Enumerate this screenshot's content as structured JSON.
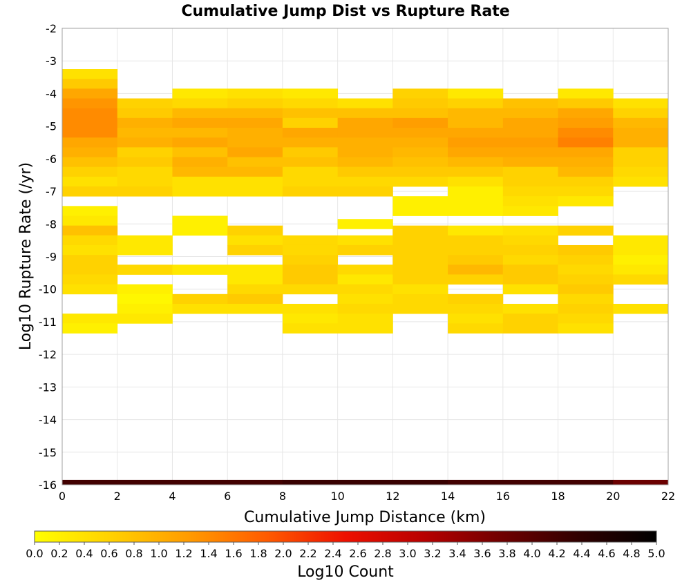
{
  "chart_data": {
    "type": "heatmap",
    "title": "Cumulative Jump Dist vs Rupture Rate",
    "xlabel": "Cumulative Jump Distance (km)",
    "ylabel": "Log10 Rupture Rate (/yr)",
    "xlim": [
      0,
      22
    ],
    "ylim": [
      -16,
      -2
    ],
    "x_ticks": [
      "0",
      "2",
      "4",
      "6",
      "8",
      "10",
      "12",
      "14",
      "16",
      "18",
      "20",
      "22"
    ],
    "y_ticks": [
      "-2",
      "-3",
      "-4",
      "-5",
      "-6",
      "-7",
      "-8",
      "-9",
      "-10",
      "-11",
      "-12",
      "-13",
      "-14",
      "-15",
      "-16"
    ],
    "grid": true,
    "x_bin_width": 2,
    "y_bin_height": 0.3,
    "colorbar": {
      "label": "Log10 Count",
      "range": [
        0,
        5
      ],
      "ticks": [
        "0.0",
        "0.2",
        "0.4",
        "0.6",
        "0.8",
        "1.0",
        "1.2",
        "1.4",
        "1.6",
        "1.8",
        "2.0",
        "2.2",
        "2.4",
        "2.6",
        "2.8",
        "3.0",
        "3.2",
        "3.4",
        "3.6",
        "3.8",
        "4.0",
        "4.2",
        "4.4",
        "4.6",
        "4.8",
        "5.0"
      ],
      "colors": [
        "#ffff00",
        "#ffd000",
        "#ff9a00",
        "#ff5a00",
        "#ee1000",
        "#b80000",
        "#700000",
        "#300000",
        "#000000"
      ]
    },
    "columns": [
      {
        "x": 0,
        "cells": [
          [
            -3.4,
            0.4
          ],
          [
            -3.7,
            0.7
          ],
          [
            -4.0,
            1.1
          ],
          [
            -4.3,
            1.3
          ],
          [
            -4.6,
            1.4
          ],
          [
            -4.9,
            1.4
          ],
          [
            -5.2,
            1.4
          ],
          [
            -5.5,
            1.1
          ],
          [
            -5.8,
            1.0
          ],
          [
            -6.1,
            0.8
          ],
          [
            -6.4,
            0.6
          ],
          [
            -6.7,
            0.4
          ],
          [
            -7.0,
            0.6
          ],
          [
            -7.6,
            0.2
          ],
          [
            -7.9,
            0.3
          ],
          [
            -8.2,
            0.8
          ],
          [
            -8.5,
            0.5
          ],
          [
            -8.8,
            0.4
          ],
          [
            -9.1,
            0.6
          ],
          [
            -9.4,
            0.6
          ],
          [
            -9.7,
            0.5
          ],
          [
            -10.0,
            0.4
          ],
          [
            -10.9,
            0.3
          ],
          [
            -11.2,
            0.2
          ],
          [
            -16.0,
            4.2
          ]
        ]
      },
      {
        "x": 2,
        "cells": [
          [
            -4.3,
            0.6
          ],
          [
            -4.6,
            0.7
          ],
          [
            -4.9,
            1.0
          ],
          [
            -5.2,
            0.9
          ],
          [
            -5.5,
            1.0
          ],
          [
            -5.8,
            0.6
          ],
          [
            -6.1,
            0.7
          ],
          [
            -6.4,
            0.5
          ],
          [
            -6.7,
            0.5
          ],
          [
            -7.0,
            0.6
          ],
          [
            -8.5,
            0.3
          ],
          [
            -8.8,
            0.3
          ],
          [
            -9.4,
            0.5
          ],
          [
            -10.0,
            0.2
          ],
          [
            -10.3,
            0.1
          ],
          [
            -10.6,
            0.2
          ],
          [
            -10.9,
            0.3
          ],
          [
            -16.0,
            4.2
          ]
        ]
      },
      {
        "x": 4,
        "cells": [
          [
            -4.0,
            0.3
          ],
          [
            -4.3,
            0.5
          ],
          [
            -4.6,
            0.9
          ],
          [
            -4.9,
            1.1
          ],
          [
            -5.2,
            0.9
          ],
          [
            -5.5,
            1.1
          ],
          [
            -5.8,
            0.8
          ],
          [
            -6.1,
            1.0
          ],
          [
            -6.4,
            0.9
          ],
          [
            -6.7,
            0.4
          ],
          [
            -7.0,
            0.4
          ],
          [
            -7.9,
            0.2
          ],
          [
            -8.2,
            0.2
          ],
          [
            -9.4,
            0.3
          ],
          [
            -10.3,
            0.6
          ],
          [
            -10.6,
            0.4
          ],
          [
            -16.0,
            4.2
          ]
        ]
      },
      {
        "x": 6,
        "cells": [
          [
            -4.0,
            0.4
          ],
          [
            -4.3,
            0.6
          ],
          [
            -4.6,
            0.9
          ],
          [
            -4.9,
            1.1
          ],
          [
            -5.2,
            1.0
          ],
          [
            -5.5,
            1.0
          ],
          [
            -5.8,
            1.1
          ],
          [
            -6.1,
            0.8
          ],
          [
            -6.4,
            0.9
          ],
          [
            -6.7,
            0.4
          ],
          [
            -7.0,
            0.4
          ],
          [
            -8.2,
            0.6
          ],
          [
            -8.5,
            0.4
          ],
          [
            -8.8,
            0.6
          ],
          [
            -9.4,
            0.3
          ],
          [
            -9.7,
            0.3
          ],
          [
            -10.0,
            0.5
          ],
          [
            -10.3,
            0.7
          ],
          [
            -10.6,
            0.4
          ],
          [
            -16.0,
            4.2
          ]
        ]
      },
      {
        "x": 8,
        "cells": [
          [
            -4.0,
            0.3
          ],
          [
            -4.3,
            0.5
          ],
          [
            -4.6,
            0.8
          ],
          [
            -4.9,
            0.6
          ],
          [
            -5.2,
            1.1
          ],
          [
            -5.5,
            1.0
          ],
          [
            -5.8,
            0.7
          ],
          [
            -6.1,
            0.8
          ],
          [
            -6.4,
            0.5
          ],
          [
            -6.7,
            0.5
          ],
          [
            -7.0,
            0.6
          ],
          [
            -8.5,
            0.5
          ],
          [
            -8.8,
            0.5
          ],
          [
            -9.1,
            0.6
          ],
          [
            -9.4,
            0.7
          ],
          [
            -9.7,
            0.7
          ],
          [
            -10.0,
            0.5
          ],
          [
            -10.6,
            0.4
          ],
          [
            -10.9,
            0.3
          ],
          [
            -11.2,
            0.4
          ],
          [
            -16.0,
            4.3
          ]
        ]
      },
      {
        "x": 10,
        "cells": [
          [
            -4.3,
            0.4
          ],
          [
            -4.6,
            0.8
          ],
          [
            -4.9,
            1.1
          ],
          [
            -5.2,
            1.1
          ],
          [
            -5.5,
            1.0
          ],
          [
            -5.8,
            1.0
          ],
          [
            -6.1,
            0.9
          ],
          [
            -6.4,
            0.7
          ],
          [
            -6.7,
            0.5
          ],
          [
            -7.0,
            0.6
          ],
          [
            -8.0,
            0.2
          ],
          [
            -8.5,
            0.4
          ],
          [
            -8.8,
            0.6
          ],
          [
            -9.4,
            0.5
          ],
          [
            -9.7,
            0.3
          ],
          [
            -10.0,
            0.5
          ],
          [
            -10.3,
            0.4
          ],
          [
            -10.6,
            0.5
          ],
          [
            -10.9,
            0.4
          ],
          [
            -11.2,
            0.4
          ],
          [
            -16.0,
            4.3
          ]
        ]
      },
      {
        "x": 12,
        "cells": [
          [
            -4.0,
            0.6
          ],
          [
            -4.3,
            0.7
          ],
          [
            -4.6,
            0.8
          ],
          [
            -4.9,
            1.2
          ],
          [
            -5.2,
            1.1
          ],
          [
            -5.5,
            1.0
          ],
          [
            -5.8,
            0.9
          ],
          [
            -6.1,
            0.8
          ],
          [
            -6.4,
            0.7
          ],
          [
            -6.7,
            0.5
          ],
          [
            -7.3,
            0.2
          ],
          [
            -7.6,
            0.2
          ],
          [
            -8.2,
            0.6
          ],
          [
            -8.5,
            0.6
          ],
          [
            -8.8,
            0.6
          ],
          [
            -9.1,
            0.6
          ],
          [
            -9.4,
            0.6
          ],
          [
            -9.7,
            0.6
          ],
          [
            -10.0,
            0.4
          ],
          [
            -10.3,
            0.5
          ],
          [
            -10.6,
            0.5
          ],
          [
            -16.0,
            4.3
          ]
        ]
      },
      {
        "x": 14,
        "cells": [
          [
            -4.0,
            0.3
          ],
          [
            -4.3,
            0.6
          ],
          [
            -4.6,
            0.9
          ],
          [
            -4.9,
            0.9
          ],
          [
            -5.2,
            1.1
          ],
          [
            -5.5,
            1.2
          ],
          [
            -5.8,
            1.1
          ],
          [
            -6.1,
            0.9
          ],
          [
            -6.4,
            0.7
          ],
          [
            -6.7,
            0.4
          ],
          [
            -7.0,
            0.2
          ],
          [
            -7.3,
            0.2
          ],
          [
            -7.6,
            0.2
          ],
          [
            -8.2,
            0.3
          ],
          [
            -8.5,
            0.6
          ],
          [
            -8.8,
            0.6
          ],
          [
            -9.1,
            0.7
          ],
          [
            -9.4,
            0.9
          ],
          [
            -9.7,
            0.6
          ],
          [
            -10.3,
            0.6
          ],
          [
            -10.6,
            0.5
          ],
          [
            -10.9,
            0.4
          ],
          [
            -11.2,
            0.5
          ],
          [
            -16.0,
            4.2
          ]
        ]
      },
      {
        "x": 16,
        "cells": [
          [
            -4.3,
            0.8
          ],
          [
            -4.6,
            0.9
          ],
          [
            -4.9,
            1.1
          ],
          [
            -5.2,
            1.1
          ],
          [
            -5.5,
            1.2
          ],
          [
            -5.8,
            1.1
          ],
          [
            -6.1,
            1.0
          ],
          [
            -6.4,
            0.6
          ],
          [
            -6.7,
            0.6
          ],
          [
            -7.0,
            0.5
          ],
          [
            -7.3,
            0.4
          ],
          [
            -7.6,
            0.3
          ],
          [
            -8.2,
            0.4
          ],
          [
            -8.5,
            0.5
          ],
          [
            -8.8,
            0.6
          ],
          [
            -9.1,
            0.5
          ],
          [
            -9.4,
            0.7
          ],
          [
            -9.7,
            0.7
          ],
          [
            -10.0,
            0.4
          ],
          [
            -10.6,
            0.4
          ],
          [
            -10.9,
            0.6
          ],
          [
            -11.2,
            0.6
          ],
          [
            -16.0,
            4.2
          ]
        ]
      },
      {
        "x": 18,
        "cells": [
          [
            -4.0,
            0.3
          ],
          [
            -4.3,
            0.7
          ],
          [
            -4.6,
            1.1
          ],
          [
            -4.9,
            1.2
          ],
          [
            -5.2,
            1.4
          ],
          [
            -5.5,
            1.5
          ],
          [
            -5.8,
            1.1
          ],
          [
            -6.1,
            1.0
          ],
          [
            -6.4,
            0.9
          ],
          [
            -6.7,
            0.6
          ],
          [
            -7.0,
            0.5
          ],
          [
            -7.3,
            0.3
          ],
          [
            -8.2,
            0.6
          ],
          [
            -8.8,
            0.7
          ],
          [
            -9.1,
            0.6
          ],
          [
            -9.4,
            0.5
          ],
          [
            -9.7,
            0.6
          ],
          [
            -10.0,
            0.7
          ],
          [
            -10.3,
            0.5
          ],
          [
            -10.6,
            0.6
          ],
          [
            -10.9,
            0.5
          ],
          [
            -11.2,
            0.4
          ],
          [
            -16.0,
            4.2
          ]
        ]
      },
      {
        "x": 20,
        "cells": [
          [
            -4.3,
            0.4
          ],
          [
            -4.6,
            0.6
          ],
          [
            -4.9,
            0.9
          ],
          [
            -5.2,
            1.0
          ],
          [
            -5.5,
            1.0
          ],
          [
            -5.8,
            0.6
          ],
          [
            -6.1,
            0.6
          ],
          [
            -6.4,
            0.5
          ],
          [
            -6.7,
            0.4
          ],
          [
            -8.5,
            0.3
          ],
          [
            -8.8,
            0.3
          ],
          [
            -9.1,
            0.2
          ],
          [
            -9.4,
            0.3
          ],
          [
            -9.7,
            0.5
          ],
          [
            -10.6,
            0.4
          ],
          [
            -16.0,
            3.8
          ]
        ]
      }
    ]
  }
}
